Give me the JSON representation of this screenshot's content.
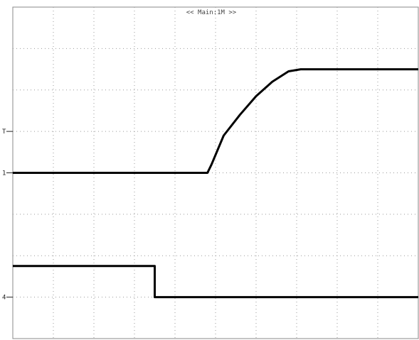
{
  "screen": {
    "title": "<< Main:1M >>",
    "markers": [
      {
        "text": "T",
        "level": 4.0
      },
      {
        "text": "1",
        "level": 3.0
      },
      {
        "text": "4",
        "level": 0.0
      }
    ]
  },
  "chart_data": {
    "type": "line",
    "title": "<< Main:1M >>",
    "xlabel": "",
    "ylabel": "",
    "grid": true,
    "xlim": [
      0,
      10
    ],
    "ylim": [
      -1,
      7
    ],
    "x_divisions": 10,
    "y_divisions": 8,
    "series": [
      {
        "color": "#000000",
        "x": [
          0,
          4.8,
          4.9,
          5.2,
          5.6,
          6.0,
          6.4,
          6.8,
          7.1,
          10
        ],
        "y": [
          3.0,
          3.0,
          3.2,
          3.9,
          4.4,
          4.85,
          5.2,
          5.45,
          5.5,
          5.5
        ]
      },
      {
        "color": "#000000",
        "x": [
          0,
          3.5,
          3.5,
          10
        ],
        "y": [
          0.75,
          0.75,
          0.0,
          0.0
        ]
      }
    ]
  }
}
